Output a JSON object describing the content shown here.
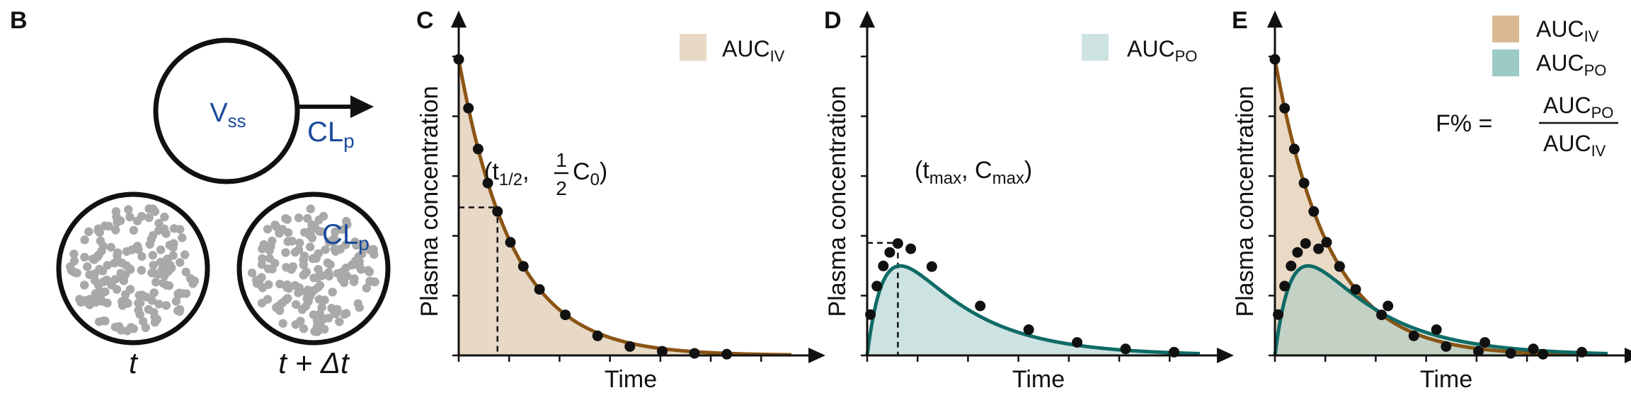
{
  "colors": {
    "iv_line": "#8a5514",
    "iv_fill": "#e8d8c6",
    "po_line": "#0f6b66",
    "po_fill": "#cde3e1",
    "legend_iv_swatch": "#d9b994",
    "legend_po_swatch": "#9ccbc6",
    "model_text": "#1a4a9c",
    "particle": "#a9a9a9",
    "ink": "#111111"
  },
  "panel_b": {
    "letter": "B",
    "compartment": {
      "v_main": "V",
      "v_sub": "ss",
      "cl_main": "CL",
      "cl_sub": "p"
    },
    "snapshots": [
      {
        "caption_main": "t",
        "caption_rest": ""
      },
      {
        "caption_main": "t",
        "caption_rest": " + Δt",
        "label_main": "CL",
        "label_sub": "p"
      }
    ]
  },
  "panel_c": {
    "letter": "C",
    "ylabel": "Plasma concentration",
    "xlabel": "Time",
    "legend": {
      "main": "AUC",
      "sub": "IV"
    },
    "annotation": {
      "open": "(t",
      "sub": "1/2",
      "comma": ",",
      "num": "1",
      "den": "2",
      "c": "C",
      "csub": "0",
      "close": ")"
    }
  },
  "panel_d": {
    "letter": "D",
    "ylabel": "Plasma concentration",
    "xlabel": "Time",
    "legend": {
      "main": "AUC",
      "sub": "PO"
    },
    "annotation": {
      "open": "(t",
      "sub1": "max",
      "mid": ", C",
      "sub2": "max",
      "close": ")"
    }
  },
  "panel_e": {
    "letter": "E",
    "ylabel": "Plasma concentration",
    "xlabel": "Time",
    "legend": [
      {
        "main": "AUC",
        "sub": "IV"
      },
      {
        "main": "AUC",
        "sub": "PO"
      }
    ],
    "formula": {
      "lhs": "F% =",
      "num_main": "AUC",
      "num_sub": "PO",
      "den_main": "AUC",
      "den_sub": "IV"
    }
  },
  "chart_data": [
    {
      "type": "line",
      "panel": "C",
      "series": [
        {
          "name": "AUC_IV",
          "kind": "iv_bolus",
          "x": [
            0,
            0.3,
            0.6,
            0.9,
            1.2,
            1.6,
            2.0,
            2.5,
            3.3,
            4.3,
            5.3,
            6.3,
            7.3,
            8.3
          ],
          "y": [
            1.0,
            0.835,
            0.697,
            0.582,
            0.486,
            0.382,
            0.301,
            0.223,
            0.137,
            0.066,
            0.03,
            0.014,
            0.007,
            0.004
          ]
        }
      ],
      "xlabel": "Time",
      "ylabel": "Plasma concentration",
      "xlim": [
        0,
        10.3
      ],
      "ylim": [
        0,
        1.05
      ],
      "annotation_point": {
        "x": 1.2,
        "y": 0.5
      }
    },
    {
      "type": "line",
      "panel": "D",
      "series": [
        {
          "name": "AUC_PO",
          "kind": "oral",
          "x": [
            0.1,
            0.3,
            0.5,
            0.7,
            0.95,
            1.35,
            2.0,
            3.5,
            5.0,
            6.5,
            8.0,
            9.5
          ],
          "y": [
            0.138,
            0.234,
            0.302,
            0.348,
            0.378,
            0.36,
            0.3,
            0.167,
            0.087,
            0.044,
            0.022,
            0.011
          ]
        }
      ],
      "xlabel": "Time",
      "ylabel": "Plasma concentration",
      "xlim": [
        0,
        10.3
      ],
      "ylim": [
        0,
        1.05
      ],
      "annotation_point": {
        "x": 0.95,
        "y": 0.38
      }
    },
    {
      "type": "line",
      "panel": "E",
      "series": [
        {
          "name": "AUC_IV",
          "kind": "iv_bolus",
          "x": [
            0,
            0.3,
            0.6,
            0.9,
            1.2,
            1.6,
            2.0,
            2.5,
            3.3,
            4.3,
            5.3,
            6.3,
            7.3,
            8.3
          ],
          "y": [
            1.0,
            0.835,
            0.697,
            0.582,
            0.486,
            0.382,
            0.301,
            0.223,
            0.137,
            0.066,
            0.03,
            0.014,
            0.007,
            0.004
          ]
        },
        {
          "name": "AUC_PO",
          "kind": "oral",
          "x": [
            0.1,
            0.3,
            0.5,
            0.7,
            0.95,
            1.35,
            2.0,
            3.5,
            5.0,
            6.5,
            8.0,
            9.5
          ],
          "y": [
            0.138,
            0.234,
            0.302,
            0.348,
            0.378,
            0.36,
            0.3,
            0.167,
            0.087,
            0.044,
            0.022,
            0.011
          ]
        }
      ],
      "xlabel": "Time",
      "ylabel": "Plasma concentration",
      "xlim": [
        0,
        10.3
      ],
      "ylim": [
        0,
        1.05
      ]
    }
  ]
}
